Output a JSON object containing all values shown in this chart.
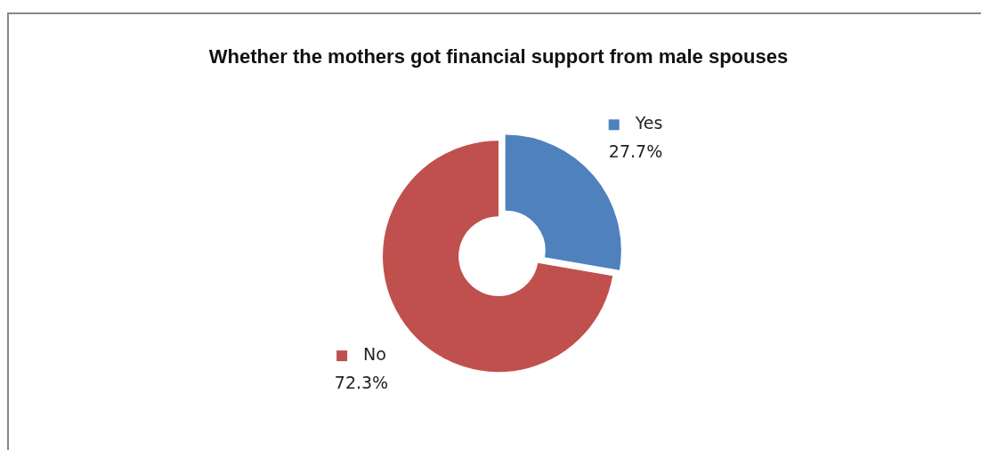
{
  "chart_data": {
    "type": "donut",
    "title": "Whether the mothers got financial support from male spouses",
    "categories": [
      "Yes",
      "No"
    ],
    "values": [
      27.7,
      72.3
    ],
    "colors": [
      "#4f81bd",
      "#c0504d"
    ],
    "value_labels": [
      "27.7%",
      "72.3%"
    ],
    "legend": "right"
  }
}
